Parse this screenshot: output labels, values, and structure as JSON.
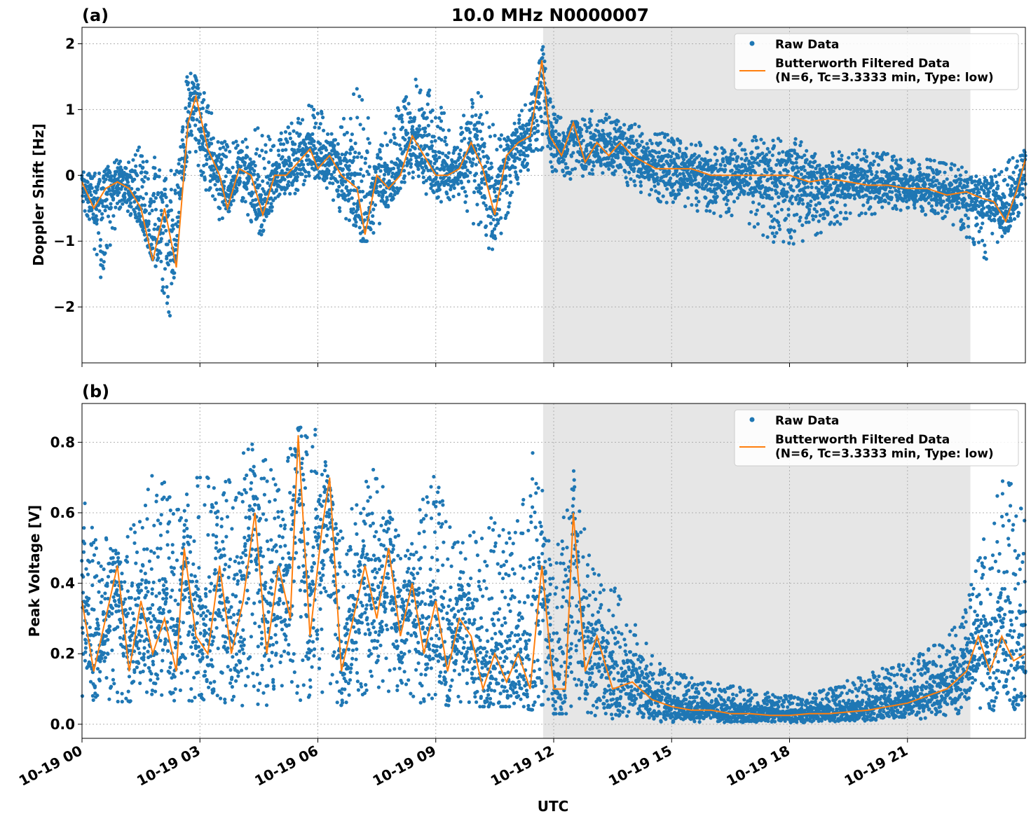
{
  "figure": {
    "title": "10.0 MHz N0000007",
    "xlabel": "UTC"
  },
  "colors": {
    "raw": "#1f77b4",
    "filtered": "#ff7f0e",
    "night_shade": "#e6e6e6"
  },
  "chart_data": [
    {
      "type": "scatter",
      "panel_label": "(a)",
      "ylabel": "Doppler Shift [Hz]",
      "xlim": [
        "10-19 00:00",
        "10-19 24:00"
      ],
      "ylim": [
        -2.85,
        2.25
      ],
      "x_ticks": [
        "10-19 00",
        "10-19 03",
        "10-19 06",
        "10-19 09",
        "10-19 12",
        "10-19 15",
        "10-19 18",
        "10-19 21"
      ],
      "y_ticks": [
        2,
        1,
        0,
        -1,
        -2
      ],
      "y_tick_labels": [
        "2",
        "1",
        "0",
        "−1",
        "−2"
      ],
      "grid": true,
      "legend": "top-right",
      "shaded_interval_hours": [
        11.73,
        22.6
      ],
      "series": [
        {
          "name": "Raw Data",
          "type": "scatter"
        },
        {
          "name": "Butterworth Filtered Data\n(N=6, Tc=3.3333 min, Type: low)",
          "type": "line"
        }
      ],
      "filtered_curve": {
        "hours": [
          0,
          0.3,
          0.6,
          0.9,
          1.2,
          1.5,
          1.8,
          2.1,
          2.4,
          2.7,
          2.9,
          3.2,
          3.5,
          3.7,
          4.0,
          4.3,
          4.6,
          4.9,
          5.2,
          5.5,
          5.8,
          6.0,
          6.3,
          6.6,
          7.0,
          7.2,
          7.5,
          7.8,
          8.1,
          8.4,
          8.7,
          9.0,
          9.3,
          9.6,
          9.9,
          10.2,
          10.5,
          10.8,
          11.1,
          11.4,
          11.7,
          11.9,
          12.2,
          12.5,
          12.8,
          13.1,
          13.4,
          13.7,
          14.0,
          14.3,
          14.6,
          15.0,
          15.5,
          16.0,
          16.5,
          17.0,
          17.5,
          18.0,
          18.5,
          19.0,
          19.5,
          20.0,
          20.5,
          21.0,
          21.5,
          22.0,
          22.5,
          22.9,
          23.2,
          23.5,
          23.8,
          24.0
        ],
        "values": [
          -0.1,
          -0.5,
          -0.2,
          -0.1,
          -0.2,
          -0.5,
          -1.3,
          -0.5,
          -1.4,
          0.8,
          1.2,
          0.4,
          0.0,
          -0.5,
          0.1,
          0.0,
          -0.6,
          0.0,
          0.0,
          0.2,
          0.4,
          0.1,
          0.3,
          0.0,
          -0.2,
          -0.9,
          0.0,
          -0.2,
          0.0,
          0.6,
          0.3,
          0.0,
          0.0,
          0.1,
          0.5,
          0.1,
          -0.6,
          0.3,
          0.5,
          0.6,
          1.75,
          0.6,
          0.3,
          0.8,
          0.2,
          0.5,
          0.3,
          0.5,
          0.3,
          0.2,
          0.1,
          0.1,
          0.1,
          0.0,
          0.0,
          0.0,
          0.0,
          0.0,
          -0.1,
          -0.05,
          -0.1,
          -0.15,
          -0.15,
          -0.2,
          -0.2,
          -0.3,
          -0.25,
          -0.35,
          -0.4,
          -0.7,
          -0.2,
          0.25
        ]
      },
      "raw_envelope": {
        "hours": [
          0,
          0.5,
          1,
          1.5,
          2,
          2.2,
          2.5,
          2.7,
          3,
          3.5,
          4,
          4.5,
          5,
          5.5,
          6,
          6.5,
          7,
          7.5,
          8,
          8.5,
          9,
          9.5,
          10,
          10.5,
          11,
          11.5,
          11.73,
          12,
          12.5,
          13,
          13.5,
          14,
          15,
          16,
          17,
          18,
          19,
          20,
          21,
          22,
          23,
          24
        ],
        "upper": [
          0.1,
          0.1,
          0.3,
          0.5,
          0.2,
          0.1,
          0.4,
          1.8,
          1.5,
          0.6,
          0.5,
          0.8,
          0.6,
          0.9,
          1.2,
          0.6,
          1.5,
          0.5,
          1.0,
          1.5,
          1.3,
          0.5,
          1.5,
          0.7,
          0.8,
          1.3,
          2.0,
          1.0,
          0.8,
          1.0,
          0.9,
          0.8,
          0.6,
          0.5,
          0.6,
          0.6,
          0.4,
          0.4,
          0.3,
          0.2,
          0.0,
          0.4
        ],
        "lower": [
          -0.4,
          -1.6,
          -0.5,
          -0.8,
          -1.6,
          -2.6,
          -0.3,
          0.3,
          0.0,
          -0.8,
          -0.3,
          -1.0,
          -0.3,
          -0.3,
          0.0,
          -0.5,
          -1.0,
          -1.0,
          -0.3,
          0.0,
          -0.6,
          -0.3,
          -0.8,
          -1.3,
          -0.2,
          0.2,
          0.4,
          0.0,
          -0.1,
          0.0,
          0.0,
          -0.2,
          -0.5,
          -0.6,
          -0.8,
          -1.2,
          -0.8,
          -0.6,
          -0.6,
          -0.7,
          -1.3,
          -0.5
        ]
      }
    },
    {
      "type": "scatter",
      "panel_label": "(b)",
      "ylabel": "Peak Voltage [V]",
      "xlabel": "UTC",
      "xlim": [
        "10-19 00:00",
        "10-19 24:00"
      ],
      "ylim": [
        -0.04,
        0.91
      ],
      "x_ticks": [
        "10-19 00",
        "10-19 03",
        "10-19 06",
        "10-19 09",
        "10-19 12",
        "10-19 15",
        "10-19 18",
        "10-19 21"
      ],
      "y_ticks": [
        0.8,
        0.6,
        0.4,
        0.2,
        0.0
      ],
      "y_tick_labels": [
        "0.8",
        "0.6",
        "0.4",
        "0.2",
        "0.0"
      ],
      "grid": true,
      "legend": "top-right",
      "shaded_interval_hours": [
        11.73,
        22.6
      ],
      "series": [
        {
          "name": "Raw Data",
          "type": "scatter"
        },
        {
          "name": "Butterworth Filtered Data\n(N=6, Tc=3.3333 min, Type: low)",
          "type": "line"
        }
      ],
      "filtered_curve": {
        "hours": [
          0,
          0.3,
          0.6,
          0.9,
          1.2,
          1.5,
          1.8,
          2.1,
          2.4,
          2.6,
          2.9,
          3.2,
          3.5,
          3.8,
          4.1,
          4.4,
          4.7,
          5.0,
          5.3,
          5.5,
          5.8,
          6.1,
          6.3,
          6.6,
          6.9,
          7.2,
          7.5,
          7.8,
          8.1,
          8.4,
          8.7,
          9.0,
          9.3,
          9.6,
          9.9,
          10.2,
          10.5,
          10.8,
          11.1,
          11.4,
          11.7,
          12.0,
          12.3,
          12.5,
          12.8,
          13.1,
          13.5,
          14.0,
          14.5,
          15.0,
          15.5,
          16.0,
          16.5,
          17.0,
          17.5,
          18.0,
          18.5,
          19.0,
          19.5,
          20.0,
          20.5,
          21.0,
          21.5,
          22.0,
          22.5,
          22.8,
          23.1,
          23.4,
          23.7,
          24.0
        ],
        "values": [
          0.35,
          0.15,
          0.3,
          0.45,
          0.15,
          0.35,
          0.2,
          0.3,
          0.15,
          0.5,
          0.25,
          0.2,
          0.45,
          0.2,
          0.35,
          0.6,
          0.2,
          0.45,
          0.3,
          0.82,
          0.25,
          0.55,
          0.7,
          0.15,
          0.3,
          0.45,
          0.3,
          0.5,
          0.25,
          0.4,
          0.2,
          0.35,
          0.15,
          0.3,
          0.25,
          0.1,
          0.2,
          0.12,
          0.2,
          0.1,
          0.45,
          0.1,
          0.1,
          0.6,
          0.15,
          0.25,
          0.1,
          0.12,
          0.07,
          0.05,
          0.04,
          0.04,
          0.03,
          0.03,
          0.025,
          0.025,
          0.03,
          0.03,
          0.035,
          0.04,
          0.05,
          0.06,
          0.08,
          0.1,
          0.15,
          0.25,
          0.15,
          0.25,
          0.18,
          0.2
        ]
      },
      "raw_envelope": {
        "hours": [
          0,
          0.5,
          1,
          1.5,
          2,
          2.5,
          3,
          3.5,
          4,
          4.5,
          5,
          5.5,
          6,
          6.5,
          7,
          7.5,
          8,
          8.5,
          9,
          9.5,
          10,
          10.5,
          11,
          11.5,
          12,
          12.5,
          13,
          13.5,
          14,
          14.5,
          15,
          16,
          17,
          18,
          19,
          20,
          21,
          22,
          22.5,
          23,
          23.5,
          24
        ],
        "upper": [
          0.65,
          0.55,
          0.5,
          0.65,
          0.75,
          0.6,
          0.8,
          0.65,
          0.84,
          0.81,
          0.7,
          0.84,
          0.86,
          0.55,
          0.67,
          0.75,
          0.55,
          0.6,
          0.72,
          0.55,
          0.55,
          0.6,
          0.55,
          0.82,
          0.45,
          0.77,
          0.45,
          0.4,
          0.3,
          0.2,
          0.15,
          0.12,
          0.1,
          0.08,
          0.1,
          0.15,
          0.18,
          0.25,
          0.35,
          0.55,
          0.72,
          0.6
        ],
        "lower": [
          0.08,
          0.06,
          0.06,
          0.07,
          0.06,
          0.07,
          0.06,
          0.06,
          0.05,
          0.05,
          0.06,
          0.07,
          0.05,
          0.05,
          0.07,
          0.08,
          0.07,
          0.06,
          0.06,
          0.05,
          0.05,
          0.05,
          0.05,
          0.04,
          0.03,
          0.03,
          0.02,
          0.01,
          0.01,
          0.005,
          0.005,
          0.005,
          0.005,
          0.005,
          0.005,
          0.01,
          0.01,
          0.02,
          0.03,
          0.03,
          0.04,
          0.04
        ]
      }
    }
  ]
}
